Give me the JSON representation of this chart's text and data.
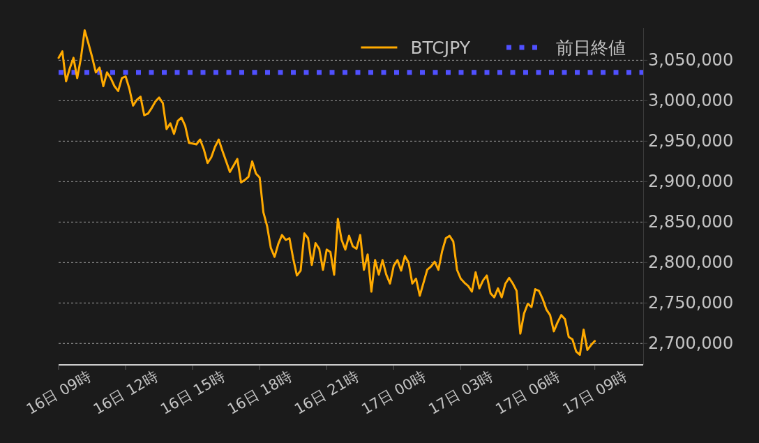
{
  "chart_data": {
    "type": "line",
    "categories": [
      "16日 09時",
      null,
      null,
      null,
      null,
      null,
      null,
      null,
      null,
      null,
      null,
      null,
      null,
      null,
      null,
      null,
      null,
      null,
      "16日 12時",
      null,
      null,
      null,
      null,
      null,
      null,
      null,
      null,
      null,
      null,
      null,
      null,
      null,
      null,
      null,
      null,
      null,
      "16日 15時",
      null,
      null,
      null,
      null,
      null,
      null,
      null,
      null,
      null,
      null,
      null,
      null,
      null,
      null,
      null,
      null,
      null,
      "16日 18時",
      null,
      null,
      null,
      null,
      null,
      null,
      null,
      null,
      null,
      null,
      null,
      null,
      null,
      null,
      null,
      null,
      null,
      "16日 21時",
      null,
      null,
      null,
      null,
      null,
      null,
      null,
      null,
      null,
      null,
      null,
      null,
      null,
      null,
      null,
      null,
      null,
      "17日 00時",
      null,
      null,
      null,
      null,
      null,
      null,
      null,
      null,
      null,
      null,
      null,
      null,
      null,
      null,
      null,
      null,
      null,
      "17日 03時",
      null,
      null,
      null,
      null,
      null,
      null,
      null,
      null,
      null,
      null,
      null,
      null,
      null,
      null,
      null,
      null,
      null,
      "17日 06時",
      null,
      null,
      null,
      null,
      null,
      null,
      null,
      null,
      null,
      null,
      null,
      null,
      null,
      null,
      null,
      null,
      null,
      "17日 09時",
      null,
      null,
      null,
      null,
      null,
      null,
      null,
      null,
      null,
      null,
      null,
      null,
      null
    ],
    "series": [
      {
        "name": "BTCJPY",
        "color": "#ffaa00",
        "values": [
          3053000,
          3061000,
          3024000,
          3040000,
          3053000,
          3028000,
          3053000,
          3087000,
          3071000,
          3054000,
          3035000,
          3041000,
          3018000,
          3035000,
          3028000,
          3018000,
          3012000,
          3028000,
          3030000,
          3015000,
          2994000,
          3001000,
          3005000,
          2982000,
          2984000,
          2991000,
          2999000,
          3004000,
          2997000,
          2965000,
          2972000,
          2959000,
          2975000,
          2979000,
          2969000,
          2948000,
          2947000,
          2946000,
          2952000,
          2940000,
          2923000,
          2930000,
          2943000,
          2952000,
          2938000,
          2925000,
          2912000,
          2920000,
          2928000,
          2899000,
          2902000,
          2906000,
          2925000,
          2910000,
          2905000,
          2862000,
          2845000,
          2818000,
          2807000,
          2823000,
          2834000,
          2828000,
          2830000,
          2805000,
          2784000,
          2790000,
          2836000,
          2830000,
          2797000,
          2824000,
          2817000,
          2791000,
          2816000,
          2813000,
          2785000,
          2854000,
          2828000,
          2816000,
          2833000,
          2820000,
          2817000,
          2834000,
          2791000,
          2810000,
          2764000,
          2803000,
          2785000,
          2803000,
          2785000,
          2774000,
          2796000,
          2803000,
          2790000,
          2808000,
          2800000,
          2774000,
          2780000,
          2759000,
          2775000,
          2791000,
          2795000,
          2801000,
          2791000,
          2814000,
          2830000,
          2833000,
          2826000,
          2791000,
          2780000,
          2775000,
          2771000,
          2764000,
          2788000,
          2768000,
          2778000,
          2784000,
          2762000,
          2757000,
          2768000,
          2757000,
          2774000,
          2781000,
          2774000,
          2765000,
          2712000,
          2737000,
          2749000,
          2745000,
          2767000,
          2765000,
          2755000,
          2742000,
          2735000,
          2715000,
          2726000,
          2735000,
          2730000,
          2708000,
          2705000,
          2690000,
          2686000,
          2717000,
          2692000,
          2698000,
          2703000,
          null,
          null,
          null,
          null,
          null,
          null,
          null,
          null,
          null,
          null,
          null,
          null,
          null
        ]
      }
    ],
    "ref_lines": [
      {
        "axis": "y",
        "value": 3035000,
        "label": "前日終値",
        "color": "#5050ff",
        "line_style": "dotted"
      }
    ],
    "ylim": [
      2673500,
      3090000
    ],
    "yticks": [
      {
        "value": 2700000,
        "label": "2,700,000"
      },
      {
        "value": 2750000,
        "label": "2,750,000"
      },
      {
        "value": 2800000,
        "label": "2,800,000"
      },
      {
        "value": 2850000,
        "label": "2,850,000"
      },
      {
        "value": 2900000,
        "label": "2,900,000"
      },
      {
        "value": 2950000,
        "label": "2,950,000"
      },
      {
        "value": 3000000,
        "label": "3,000,000"
      },
      {
        "value": 3050000,
        "label": "3,050,000"
      }
    ],
    "grid": "y",
    "legend": "top right"
  }
}
